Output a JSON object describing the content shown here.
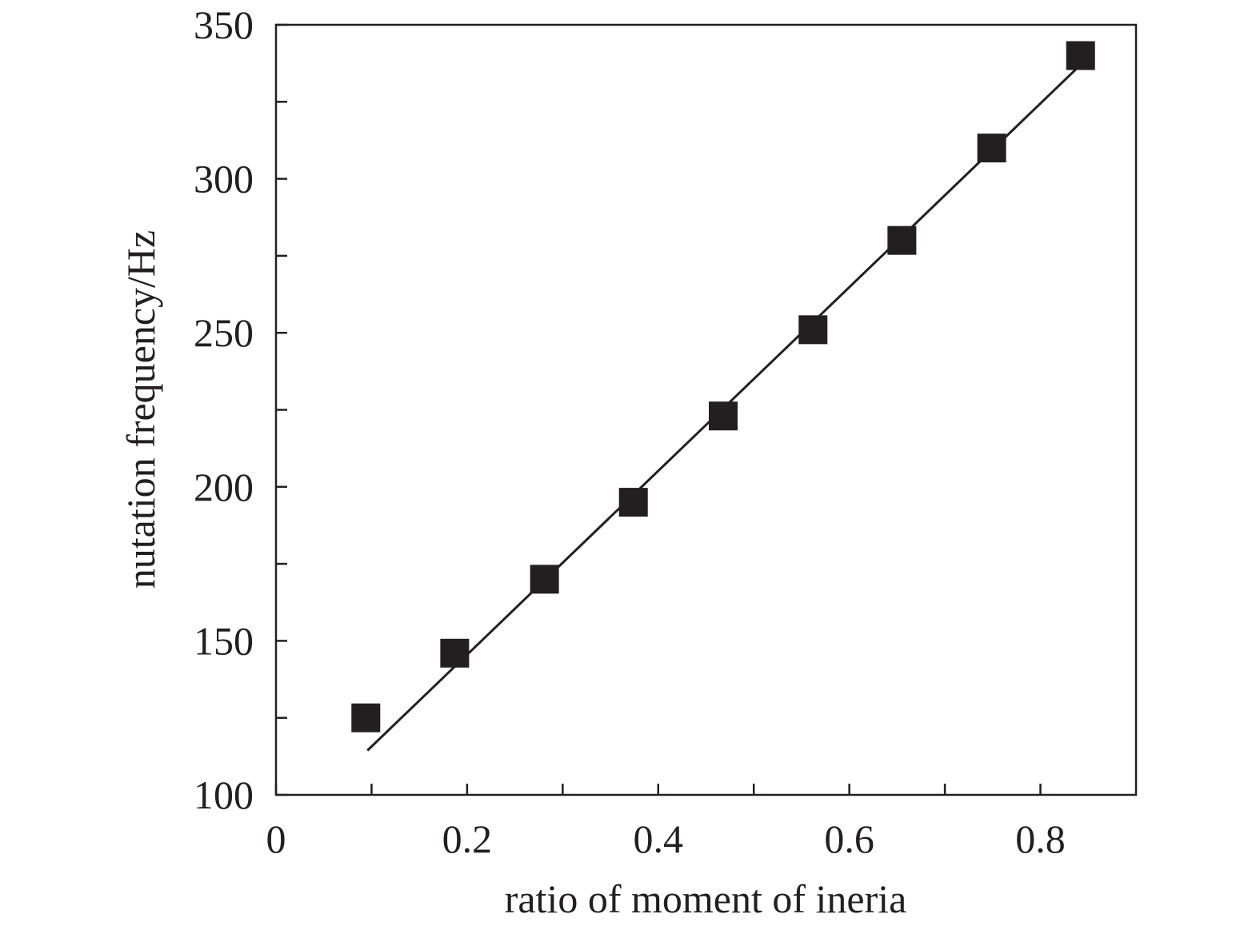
{
  "chart_data": {
    "type": "scatter",
    "title": "",
    "xlabel": "ratio of moment of ineria",
    "ylabel": "nutation frequency/Hz",
    "xlim": [
      0,
      0.9
    ],
    "ylim": [
      100,
      350
    ],
    "x_major_ticks": [
      0,
      0.2,
      0.4,
      0.6,
      0.8
    ],
    "x_tick_labels": [
      "0",
      "0.2",
      "0.4",
      "0.6",
      "0.8"
    ],
    "x_minor_ticks": [
      0.1,
      0.3,
      0.5,
      0.7
    ],
    "y_major_ticks": [
      100,
      150,
      200,
      250,
      300,
      350
    ],
    "y_tick_labels": [
      "100",
      "150",
      "200",
      "250",
      "300",
      "350"
    ],
    "y_minor_ticks": [
      125,
      175,
      225,
      275,
      325
    ],
    "grid": false,
    "marker": "filled-square",
    "color": "#231f20",
    "series": [
      {
        "x": [
          0.094,
          0.187,
          0.281,
          0.374,
          0.468,
          0.562,
          0.655,
          0.749,
          0.842
        ],
        "values": [
          125,
          146,
          170,
          195,
          223,
          251,
          280,
          310,
          340
        ]
      }
    ],
    "fit_line": {
      "x": [
        0.094,
        0.842
      ],
      "values": [
        117,
        337
      ]
    }
  }
}
